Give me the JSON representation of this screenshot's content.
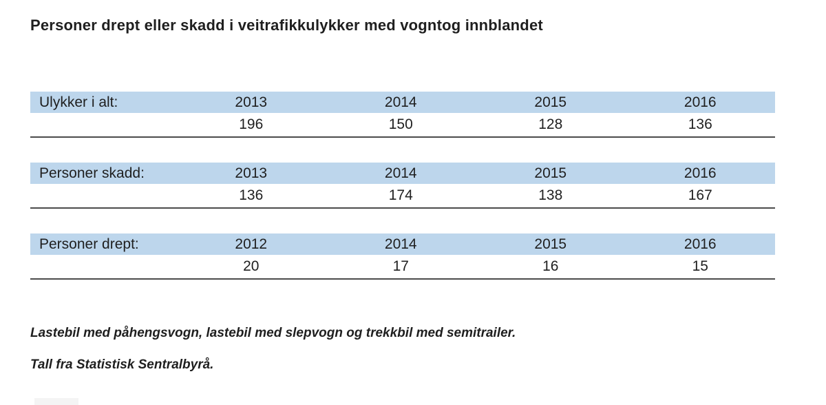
{
  "page": {
    "title": "Personer drept eller skadd i veitrafikkulykker med vogntog innblandet"
  },
  "colors": {
    "table_header_band": "#bdd6ec",
    "table_rule": "#4b4b4b",
    "text": "#1f1f1f",
    "background": "#ffffff"
  },
  "chart_data": {
    "type": "table",
    "title": "Personer drept eller skadd i veitrafikkulykker med vogntog innblandet",
    "sections": [
      {
        "label": "Ulykker i alt:",
        "years": [
          "2013",
          "2014",
          "2015",
          "2016"
        ],
        "values": [
          "196",
          "150",
          "128",
          "136"
        ]
      },
      {
        "label": "Personer skadd:",
        "years": [
          "2013",
          "2014",
          "2015",
          "2016"
        ],
        "values": [
          "136",
          "174",
          "138",
          "167"
        ]
      },
      {
        "label": "Personer drept:",
        "years": [
          "2012",
          "2014",
          "2015",
          "2016"
        ],
        "values": [
          "20",
          "17",
          "16",
          "15"
        ]
      }
    ]
  },
  "footnotes": [
    "Lastebil med påhengsvogn, lastebil med slepvogn og trekkbil med semitrailer.",
    "Tall fra Statistisk Sentralbyrå."
  ]
}
